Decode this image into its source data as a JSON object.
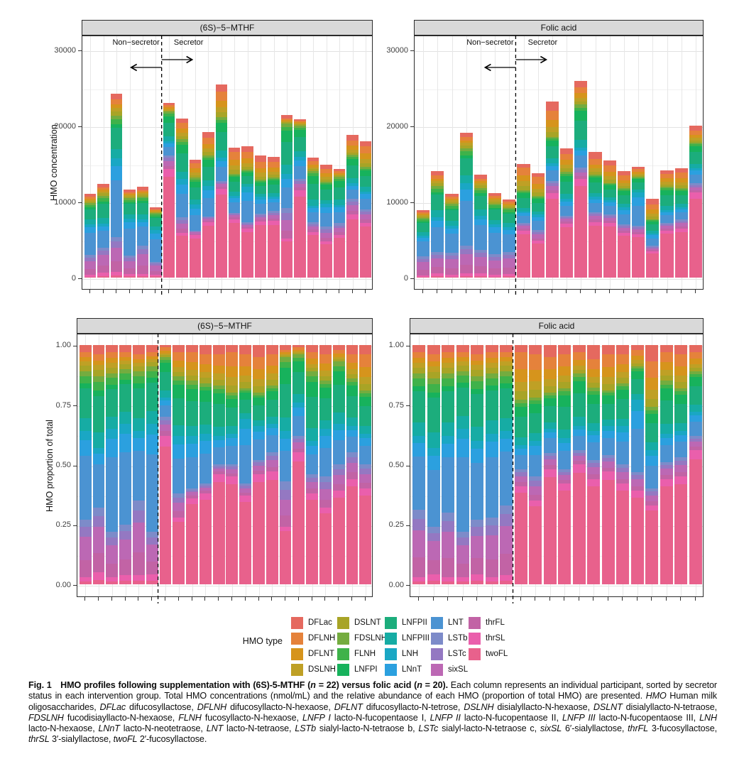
{
  "chart_data": {
    "type": "bar",
    "stacked": true,
    "description": "Stacked bar charts of HMO composition per participant; top row absolute concentration (nmol/mL), bottom row proportion of total. Stacking order bottom-to-top is the reverse of hmo_types order (twoFL at bottom, DFLac on top).",
    "hmo_types": [
      {
        "name": "DFLac",
        "color": "#E5695F"
      },
      {
        "name": "DFLNH",
        "color": "#E5823B"
      },
      {
        "name": "DFLNT",
        "color": "#D6941C"
      },
      {
        "name": "DSLNH",
        "color": "#BFA025"
      },
      {
        "name": "DSLNT",
        "color": "#A8A426"
      },
      {
        "name": "FDSLNH",
        "color": "#74AC3F"
      },
      {
        "name": "FLNH",
        "color": "#3FB24A"
      },
      {
        "name": "LNFPI",
        "color": "#17B25C"
      },
      {
        "name": "LNFPII",
        "color": "#1CAD7C"
      },
      {
        "name": "LNFPIII",
        "color": "#16ACA4"
      },
      {
        "name": "LNH",
        "color": "#1AA7C4"
      },
      {
        "name": "LNnT",
        "color": "#2BA0DF"
      },
      {
        "name": "LNT",
        "color": "#4B93D2"
      },
      {
        "name": "LSTb",
        "color": "#7D8BC9"
      },
      {
        "name": "LSTc",
        "color": "#9478C2"
      },
      {
        "name": "sixSL",
        "color": "#BC68B4"
      },
      {
        "name": "thrFL",
        "color": "#C263A5"
      },
      {
        "name": "thrSL",
        "color": "#EA5FAC"
      },
      {
        "name": "twoFL",
        "color": "#E8618C"
      }
    ],
    "concentration_axis": {
      "label": "HMO concentration",
      "ticks": [
        0,
        10000,
        20000,
        30000
      ],
      "minor": [
        5000,
        15000,
        25000
      ],
      "ylim": [
        0,
        32000
      ]
    },
    "proportion_axis": {
      "label": "HMO proportion of total",
      "ticks": [
        0,
        0.25,
        0.5,
        0.75,
        1
      ],
      "tick_labels": [
        "0.00",
        "0.25",
        "0.50",
        "0.75",
        "1.00"
      ],
      "minor": [
        0.125,
        0.375,
        0.625,
        0.875
      ],
      "ylim": [
        0,
        1
      ]
    },
    "annotations": {
      "left_of_line": "Non−secretor",
      "right_of_line": "Secretor"
    },
    "band_keys": [
      "pink_end (twoFL+thrSL)",
      "mauve_end (+thrFL,sixSL,LSTc,LSTb)",
      "blue_end (+LNT,LNnT,LNH)",
      "green_end (+LNFPIII,LNFPII,LNFPI,FLNH,FDSLNH)",
      "yellow_end (+DSLNT,DSLNH,DFLNT,DFLNH)  — remainder to 1.0 is DFLac"
    ],
    "band_splits": {
      "non_secretor": {
        "pink": {
          "twoFL": 0.35,
          "thrSL": 0.65
        },
        "mauve": {
          "thrFL": 0.3,
          "sixSL": 0.4,
          "LSTc": 0.17,
          "LSTb": 0.13
        },
        "blue": {
          "LNT": 0.72,
          "LNnT": 0.18,
          "LNH": 0.1
        },
        "green": {
          "LNFPIII": 0.22,
          "LNFPII": 0.5,
          "LNFPI": 0.08,
          "FLNH": 0.12,
          "FDSLNH": 0.08
        },
        "yellow": {
          "DSLNT": 0.28,
          "DSLNH": 0.22,
          "DFLNT": 0.22,
          "DFLNH": 0.28
        }
      },
      "secretor": {
        "pink": {
          "twoFL": 0.93,
          "thrSL": 0.07
        },
        "mauve": {
          "thrFL": 0.25,
          "sixSL": 0.35,
          "LSTc": 0.22,
          "LSTb": 0.18
        },
        "blue": {
          "LNT": 0.6,
          "LNnT": 0.25,
          "LNH": 0.15
        },
        "green": {
          "LNFPIII": 0.18,
          "LNFPII": 0.45,
          "LNFPI": 0.22,
          "FLNH": 0.08,
          "FDSLNH": 0.07
        },
        "yellow": {
          "DSLNT": 0.18,
          "DSLNH": 0.2,
          "DFLNT": 0.27,
          "DFLNH": 0.35
        }
      }
    },
    "groups": [
      {
        "label": "(6S)−5−MTHF",
        "n": 22,
        "non_secretor_count": 6,
        "totals_nmol_mL": [
          11000,
          12400,
          24200,
          11600,
          12000,
          9300,
          23000,
          21000,
          15500,
          19200,
          25500,
          17100,
          17300,
          16100,
          15900,
          21400,
          20900,
          15800,
          14900,
          14300,
          18800,
          18000
        ],
        "band_cum_fractions": [
          [
            0.03,
            0.27,
            0.64,
            0.89,
            0.97
          ],
          [
            0.05,
            0.32,
            0.57,
            0.87,
            0.96
          ],
          [
            0.03,
            0.22,
            0.65,
            0.88,
            0.97
          ],
          [
            0.04,
            0.25,
            0.67,
            0.9,
            0.97
          ],
          [
            0.04,
            0.35,
            0.64,
            0.89,
            0.96
          ],
          [
            0.04,
            0.22,
            0.67,
            0.91,
            0.97
          ],
          [
            0.62,
            0.7,
            0.78,
            0.95,
            0.99
          ],
          [
            0.28,
            0.38,
            0.62,
            0.87,
            0.97
          ],
          [
            0.36,
            0.4,
            0.62,
            0.85,
            0.97
          ],
          [
            0.38,
            0.42,
            0.63,
            0.84,
            0.96
          ],
          [
            0.46,
            0.5,
            0.62,
            0.83,
            0.96
          ],
          [
            0.45,
            0.5,
            0.63,
            0.8,
            0.97
          ],
          [
            0.37,
            0.42,
            0.69,
            0.82,
            0.96
          ],
          [
            0.46,
            0.52,
            0.66,
            0.8,
            0.95
          ],
          [
            0.47,
            0.55,
            0.67,
            0.83,
            0.96
          ],
          [
            0.24,
            0.43,
            0.64,
            0.95,
            0.98
          ],
          [
            0.55,
            0.62,
            0.76,
            0.96,
            0.99
          ],
          [
            0.38,
            0.46,
            0.6,
            0.89,
            0.97
          ],
          [
            0.32,
            0.45,
            0.65,
            0.85,
            0.96
          ],
          [
            0.39,
            0.5,
            0.67,
            0.93,
            0.98
          ],
          [
            0.44,
            0.55,
            0.66,
            0.86,
            0.96
          ],
          [
            0.4,
            0.5,
            0.63,
            0.81,
            0.96
          ]
        ]
      },
      {
        "label": "Folic acid",
        "n": 20,
        "non_secretor_count": 7,
        "totals_nmol_mL": [
          8900,
          14000,
          11000,
          19100,
          13600,
          11100,
          10300,
          15000,
          13800,
          23200,
          17000,
          25900,
          16600,
          15400,
          14000,
          14600,
          10400,
          14100,
          14400,
          20000
        ],
        "band_cum_fractions": [
          [
            0.03,
            0.31,
            0.62,
            0.88,
            0.97
          ],
          [
            0.04,
            0.24,
            0.57,
            0.86,
            0.96
          ],
          [
            0.03,
            0.3,
            0.62,
            0.88,
            0.97
          ],
          [
            0.03,
            0.22,
            0.65,
            0.89,
            0.97
          ],
          [
            0.04,
            0.27,
            0.6,
            0.87,
            0.96
          ],
          [
            0.03,
            0.28,
            0.63,
            0.88,
            0.97
          ],
          [
            0.04,
            0.33,
            0.64,
            0.89,
            0.97
          ],
          [
            0.41,
            0.48,
            0.58,
            0.77,
            0.97
          ],
          [
            0.35,
            0.45,
            0.6,
            0.78,
            0.96
          ],
          [
            0.48,
            0.55,
            0.65,
            0.8,
            0.95
          ],
          [
            0.42,
            0.48,
            0.61,
            0.82,
            0.96
          ],
          [
            0.5,
            0.56,
            0.66,
            0.88,
            0.97
          ],
          [
            0.44,
            0.52,
            0.64,
            0.82,
            0.94
          ],
          [
            0.47,
            0.54,
            0.66,
            0.81,
            0.96
          ],
          [
            0.42,
            0.5,
            0.66,
            0.84,
            0.96
          ],
          [
            0.39,
            0.47,
            0.77,
            0.91,
            0.98
          ],
          [
            0.33,
            0.4,
            0.56,
            0.74,
            0.93
          ],
          [
            0.44,
            0.51,
            0.63,
            0.85,
            0.97
          ],
          [
            0.45,
            0.53,
            0.64,
            0.82,
            0.96
          ],
          [
            0.56,
            0.62,
            0.72,
            0.89,
            0.97
          ]
        ]
      }
    ]
  },
  "legend": {
    "title": "HMO type"
  },
  "caption": {
    "segments": [
      {
        "t": "Fig. 1",
        "b": 1
      },
      {
        "t": "  ",
        "b": 1
      },
      {
        "t": "HMO profiles following supplementation with (6S)-5-MTHF (",
        "b": 1
      },
      {
        "t": "n",
        "b": 1,
        "i": 1
      },
      {
        "t": " = 22) versus folic acid (",
        "b": 1
      },
      {
        "t": "n",
        "b": 1,
        "i": 1
      },
      {
        "t": " = 20).",
        "b": 1
      },
      {
        "t": " Each column represents an individual participant, sorted by secretor status in each intervention group. Total HMO concentrations (nmol/mL) and the relative abundance of each HMO (proportion of total HMO) are presented. "
      },
      {
        "t": "HMO",
        "i": 1
      },
      {
        "t": " Human milk oligosaccharides, "
      },
      {
        "t": "DFLac",
        "i": 1
      },
      {
        "t": " difucosyllactose, "
      },
      {
        "t": "DFLNH",
        "i": 1
      },
      {
        "t": " difucosyllacto-N-hexaose, "
      },
      {
        "t": "DFLNT",
        "i": 1
      },
      {
        "t": " difucosyllacto-N-tetrose, "
      },
      {
        "t": "DSLNH",
        "i": 1
      },
      {
        "t": " disialyllacto-N-hexaose, "
      },
      {
        "t": "DSLNT",
        "i": 1
      },
      {
        "t": " disialyllacto-N-tetraose, "
      },
      {
        "t": "FDSLNH",
        "i": 1
      },
      {
        "t": " fucodisiayllacto-N-hexaose, "
      },
      {
        "t": "FLNH",
        "i": 1
      },
      {
        "t": " fucosyllacto-N-hexaose, "
      },
      {
        "t": "LNFP I",
        "i": 1
      },
      {
        "t": " lacto-N-fucopentaose I, "
      },
      {
        "t": "LNFP II",
        "i": 1
      },
      {
        "t": " lacto-N-fucopentaose II, "
      },
      {
        "t": "LNFP III",
        "i": 1
      },
      {
        "t": " lacto-N-fucopentaose III, "
      },
      {
        "t": "LNH",
        "i": 1
      },
      {
        "t": " lacto-N-hexaose, "
      },
      {
        "t": "LNnT",
        "i": 1
      },
      {
        "t": " lacto-N-neotetraose, "
      },
      {
        "t": "LNT",
        "i": 1
      },
      {
        "t": " lacto-N-tetraose, "
      },
      {
        "t": "LSTb",
        "i": 1
      },
      {
        "t": " sialyl-lacto-N-tetraose b, "
      },
      {
        "t": "LSTc",
        "i": 1
      },
      {
        "t": " sialyl-lacto-N-tetraose c, "
      },
      {
        "t": "sixSL",
        "i": 1
      },
      {
        "t": " 6′-sialyllactose, "
      },
      {
        "t": "thrFL",
        "i": 1
      },
      {
        "t": " 3-fucosyllactose, "
      },
      {
        "t": "thrSL",
        "i": 1
      },
      {
        "t": " 3′-sialyllactose, "
      },
      {
        "t": "twoFL",
        "i": 1
      },
      {
        "t": " 2′-fucosyllactose."
      }
    ]
  }
}
